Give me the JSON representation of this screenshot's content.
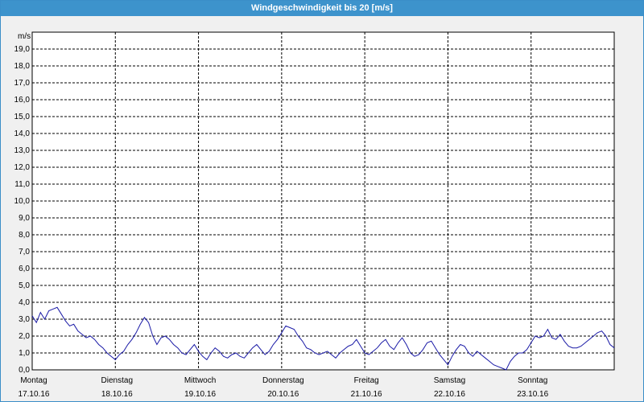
{
  "window": {
    "title": "Windgeschwindigkeit bis 20 [m/s]"
  },
  "colors": {
    "titlebar": "#3d93cc",
    "series": "#1a1aa6",
    "grid": "#000000"
  },
  "chart_data": {
    "type": "line",
    "title": "Windgeschwindigkeit bis 20 [m/s]",
    "ylabel": "m/s",
    "xlabel": "",
    "ylim": [
      0,
      20
    ],
    "y_ticks": [
      "0,0",
      "1,0",
      "2,0",
      "3,0",
      "4,0",
      "5,0",
      "6,0",
      "7,0",
      "8,0",
      "9,0",
      "10,0",
      "11,0",
      "12,0",
      "13,0",
      "14,0",
      "15,0",
      "16,0",
      "17,0",
      "18,0",
      "19,0"
    ],
    "x_range_days": [
      0,
      7
    ],
    "days": [
      {
        "day": "Montag",
        "date": "17.10.16"
      },
      {
        "day": "Dienstag",
        "date": "18.10.16"
      },
      {
        "day": "Mittwoch",
        "date": "19.10.16"
      },
      {
        "day": "Donnerstag",
        "date": "20.10.16"
      },
      {
        "day": "Freitag",
        "date": "21.10.16"
      },
      {
        "day": "Samstag",
        "date": "22.10.16"
      },
      {
        "day": "Sonntag",
        "date": "23.10.16"
      }
    ],
    "grid": true,
    "series": [
      {
        "color": "#1a1aa6",
        "x": [
          0.0,
          0.05,
          0.1,
          0.15,
          0.2,
          0.25,
          0.3,
          0.35,
          0.4,
          0.45,
          0.5,
          0.55,
          0.6,
          0.65,
          0.7,
          0.75,
          0.8,
          0.85,
          0.9,
          0.95,
          1.0,
          1.05,
          1.1,
          1.15,
          1.2,
          1.25,
          1.3,
          1.35,
          1.4,
          1.45,
          1.5,
          1.55,
          1.6,
          1.65,
          1.7,
          1.75,
          1.8,
          1.85,
          1.9,
          1.95,
          2.0,
          2.05,
          2.1,
          2.15,
          2.2,
          2.25,
          2.3,
          2.35,
          2.4,
          2.45,
          2.5,
          2.55,
          2.6,
          2.65,
          2.7,
          2.75,
          2.8,
          2.85,
          2.9,
          2.95,
          3.0,
          3.05,
          3.1,
          3.15,
          3.2,
          3.25,
          3.3,
          3.35,
          3.4,
          3.45,
          3.5,
          3.55,
          3.6,
          3.65,
          3.7,
          3.75,
          3.8,
          3.85,
          3.9,
          3.95,
          4.0,
          4.05,
          4.1,
          4.15,
          4.2,
          4.25,
          4.3,
          4.35,
          4.4,
          4.45,
          4.5,
          4.55,
          4.6,
          4.65,
          4.7,
          4.75,
          4.8,
          4.85,
          4.9,
          4.95,
          5.0,
          5.05,
          5.1,
          5.15,
          5.2,
          5.25,
          5.3,
          5.35,
          5.4,
          5.45,
          5.5,
          5.55,
          5.6,
          5.65,
          5.7,
          5.75,
          5.8,
          5.85,
          5.9,
          5.95,
          6.0,
          6.05,
          6.1,
          6.15,
          6.2,
          6.25,
          6.3,
          6.35,
          6.4,
          6.45,
          6.5,
          6.55,
          6.6,
          6.65,
          6.7,
          6.75,
          6.8,
          6.85,
          6.9,
          6.95,
          7.0
        ],
        "y": [
          3.2,
          2.8,
          3.4,
          3.0,
          3.5,
          3.6,
          3.7,
          3.3,
          2.9,
          2.6,
          2.7,
          2.3,
          2.1,
          1.9,
          2.0,
          1.8,
          1.5,
          1.3,
          1.0,
          0.8,
          0.6,
          0.9,
          1.1,
          1.5,
          1.8,
          2.2,
          2.7,
          3.1,
          2.8,
          2.0,
          1.5,
          1.9,
          2.0,
          1.8,
          1.5,
          1.3,
          1.0,
          0.9,
          1.2,
          1.5,
          1.1,
          0.8,
          0.6,
          1.0,
          1.3,
          1.1,
          0.8,
          0.7,
          0.9,
          1.0,
          0.8,
          0.7,
          1.0,
          1.3,
          1.5,
          1.2,
          0.9,
          1.1,
          1.5,
          1.8,
          2.2,
          2.6,
          2.5,
          2.4,
          2.0,
          1.7,
          1.3,
          1.2,
          1.0,
          0.9,
          1.0,
          1.1,
          0.9,
          0.7,
          1.0,
          1.2,
          1.4,
          1.5,
          1.8,
          1.4,
          1.0,
          0.9,
          1.1,
          1.3,
          1.6,
          1.8,
          1.4,
          1.2,
          1.6,
          1.9,
          1.5,
          1.0,
          0.8,
          0.9,
          1.2,
          1.6,
          1.7,
          1.3,
          0.9,
          0.6,
          0.3,
          0.8,
          1.2,
          1.5,
          1.4,
          1.0,
          0.8,
          1.1,
          0.9,
          0.7,
          0.5,
          0.3,
          0.2,
          0.1,
          0.0,
          0.5,
          0.8,
          1.0,
          1.0,
          1.2,
          1.6,
          2.0,
          1.9,
          2.0,
          2.4,
          1.9,
          1.8,
          2.1,
          1.7,
          1.4,
          1.3,
          1.3,
          1.4,
          1.6,
          1.8,
          2.0,
          2.2,
          2.3,
          2.0,
          1.5,
          1.3
        ]
      }
    ]
  }
}
